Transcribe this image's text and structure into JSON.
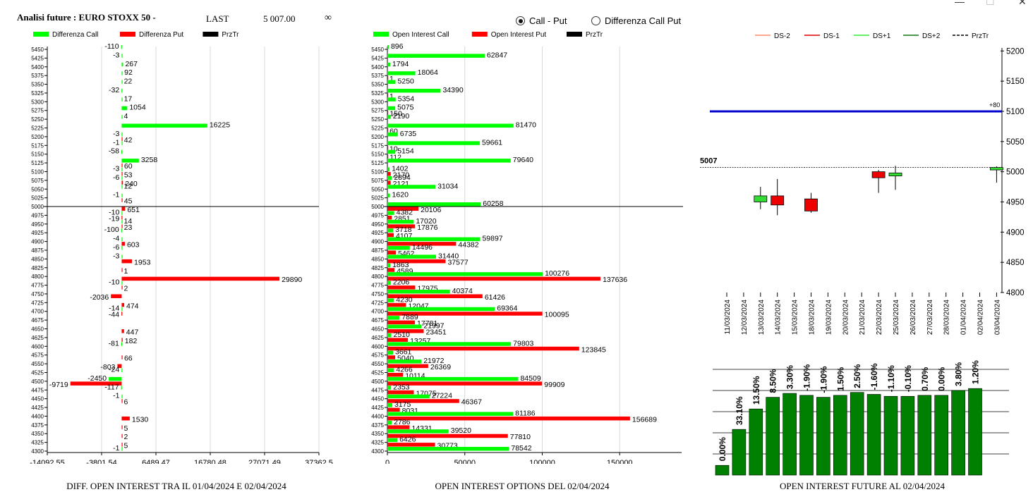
{
  "header": {
    "title": "Analisi future : EURO STOXX 50 -",
    "last_label": "LAST",
    "last_value": "5 007.00",
    "infinity": "∞"
  },
  "toggle": {
    "option1": "Call - Put",
    "option2": "Differenza Call Put",
    "selected": 0
  },
  "window_controls": {
    "minimize": "—",
    "maximize": "☐",
    "close": "✕"
  },
  "colors": {
    "green": "#00ff00",
    "red": "#ff0000",
    "dark_green": "#008000",
    "blue": "#0000cc"
  },
  "chart_data": [
    {
      "id": "diff",
      "type": "bar",
      "orientation": "horizontal",
      "title": "DIFF. OPEN INTEREST TRA IL 01/04/2024 E 02/04/2024",
      "legend": [
        {
          "name": "Differenza Call",
          "color": "#00ff00"
        },
        {
          "name": "Differenza Put",
          "color": "#ff0000"
        },
        {
          "name": "PrzTr",
          "color": "#000000"
        }
      ],
      "strikes": [
        5450,
        5425,
        5400,
        5375,
        5350,
        5325,
        5300,
        5275,
        5250,
        5225,
        5200,
        5175,
        5150,
        5125,
        5100,
        5075,
        5050,
        5025,
        5000,
        4975,
        4950,
        4925,
        4900,
        4875,
        4850,
        4825,
        4800,
        4775,
        4750,
        4725,
        4700,
        4675,
        4650,
        4625,
        4600,
        4575,
        4550,
        4525,
        4500,
        4475,
        4450,
        4425,
        4400,
        4375,
        4350,
        4325,
        4300
      ],
      "call_values": [
        -110,
        -3,
        267,
        92,
        22,
        -32,
        17,
        1054,
        4,
        16225,
        -3,
        -1,
        -58,
        3258,
        -3,
        -6,
        12,
        -1,
        null,
        -10,
        14,
        -100,
        -4,
        -6,
        -3,
        null,
        null,
        -10,
        null,
        null,
        -14,
        null,
        null,
        null,
        -81,
        null,
        null,
        -24,
        -2450,
        -117,
        -1,
        null,
        null,
        null,
        null,
        null,
        -1
      ],
      "put_values": [
        null,
        null,
        null,
        null,
        null,
        null,
        null,
        null,
        null,
        null,
        42,
        null,
        null,
        60,
        53,
        240,
        null,
        45,
        651,
        -19,
        23,
        null,
        603,
        null,
        1953,
        1,
        29890,
        2,
        -2036,
        474,
        -44,
        null,
        447,
        182,
        null,
        66,
        -803,
        null,
        -9719,
        null,
        6,
        null,
        1530,
        5,
        2,
        5,
        null
      ],
      "price_line": 5000,
      "xticks": [
        "-14092.55",
        "-3801.54",
        "6489.47",
        "16780.48",
        "27071.49",
        "37362.5"
      ],
      "xlim": [
        -14092.55,
        37362.5
      ]
    },
    {
      "id": "oi",
      "type": "bar",
      "orientation": "horizontal",
      "title": "OPEN INTEREST OPTIONS DEL 02/04/2024",
      "legend": [
        {
          "name": "Open Interest Call",
          "color": "#00ff00"
        },
        {
          "name": "Open Interest Put",
          "color": "#ff0000"
        },
        {
          "name": "PrzTr",
          "color": "#000000"
        }
      ],
      "strikes": [
        5450,
        5425,
        5400,
        5375,
        5350,
        5325,
        5300,
        5275,
        5250,
        5225,
        5200,
        5175,
        5150,
        5125,
        5100,
        5075,
        5050,
        5025,
        5000,
        4975,
        4950,
        4925,
        4900,
        4875,
        4850,
        4825,
        4800,
        4775,
        4750,
        4725,
        4700,
        4675,
        4650,
        4625,
        4600,
        4575,
        4550,
        4525,
        4500,
        4475,
        4450,
        4425,
        4400,
        4375,
        4350,
        4325,
        4300
      ],
      "call_values": [
        896,
        62847,
        1794,
        18064,
        5250,
        34390,
        5354,
        5075,
        2190,
        81470,
        6735,
        59661,
        5154,
        79640,
        1402,
        2894,
        31034,
        1620,
        60258,
        4382,
        17020,
        3718,
        59897,
        14496,
        31440,
        1863,
        100276,
        2206,
        40374,
        4230,
        69364,
        7889,
        21997,
        2510,
        79803,
        3661,
        21972,
        4266,
        84509,
        2353,
        27224,
        3175,
        81186,
        2786,
        39520,
        6426,
        78542
      ],
      "put_values": [
        null,
        null,
        null,
        1,
        null,
        1,
        null,
        150,
        null,
        60,
        null,
        10,
        112,
        null,
        2170,
        2121,
        null,
        null,
        20106,
        2851,
        17876,
        4107,
        44382,
        5462,
        37577,
        4589,
        137636,
        17975,
        61426,
        12047,
        100095,
        17781,
        23451,
        13257,
        123845,
        5040,
        26369,
        10114,
        99909,
        17075,
        46367,
        8031,
        156689,
        14331,
        77810,
        30773,
        null
      ],
      "price_line": 5000,
      "xticks": [
        "0",
        "50000",
        "100000",
        "150000"
      ],
      "xlim": [
        0,
        190000
      ]
    },
    {
      "id": "future",
      "type": "candlestick",
      "legend": [
        {
          "name": "DS-2",
          "color": "#ff8c69"
        },
        {
          "name": "DS-1",
          "color": "#dd0000"
        },
        {
          "name": "DS+1",
          "color": "#33ee33"
        },
        {
          "name": "DS+2",
          "color": "#117711"
        },
        {
          "name": "PrzTr",
          "color": "#000000"
        }
      ],
      "dates": [
        "11/03/2024",
        "12/03/2024",
        "13/03/2024",
        "14/03/2024",
        "15/03/2024",
        "18/03/2024",
        "19/03/2024",
        "20/03/2024",
        "21/03/2024",
        "22/03/2024",
        "25/03/2024",
        "26/03/2024",
        "27/03/2024",
        "28/03/2024",
        "01/04/2024",
        "02/04/2024",
        "03/04/2024"
      ],
      "candles": [
        {
          "i": 2,
          "open": 4950,
          "close": 4960,
          "high": 4975,
          "low": 4938
        },
        {
          "i": 3,
          "open": 4960,
          "close": 4945,
          "high": 4988,
          "low": 4928
        },
        {
          "i": 5,
          "open": 4955,
          "close": 4935,
          "high": 4965,
          "low": 4932
        },
        {
          "i": 9,
          "open": 5000,
          "close": 4990,
          "high": 5003,
          "low": 4965
        },
        {
          "i": 10,
          "open": 4993,
          "close": 4998,
          "high": 5010,
          "low": 4970
        },
        {
          "i": 16,
          "open": 5003,
          "close": 5007,
          "high": 5009,
          "low": 4982
        }
      ],
      "blue_line": 5100,
      "blue_label": "+80",
      "price_line": 5007,
      "price_label": "5007",
      "yticks": [
        "5200",
        "5150",
        "5100",
        "5050",
        "5000",
        "4950",
        "4900",
        "4850",
        "4800"
      ],
      "ylim": [
        4800,
        5205
      ]
    },
    {
      "id": "oi_future",
      "type": "bar",
      "title": "OPEN INTEREST FUTURE AL 02/04/2024",
      "values": [
        0.1,
        0.47,
        0.68,
        0.8,
        0.84,
        0.82,
        0.8,
        0.82,
        0.85,
        0.83,
        0.81,
        0.81,
        0.82,
        0.82,
        0.87,
        0.89
      ],
      "labels": [
        "0.00%",
        "33.10%",
        "13.50%",
        "8.50%",
        "3.30%",
        "-1.90%",
        "-1.90%",
        "1.50%",
        "2.50%",
        "-1.60%",
        "-1.10%",
        "-0.10%",
        "0.70%",
        "0.00%",
        "3.80%",
        "1.20%"
      ],
      "color": "#008000"
    }
  ]
}
